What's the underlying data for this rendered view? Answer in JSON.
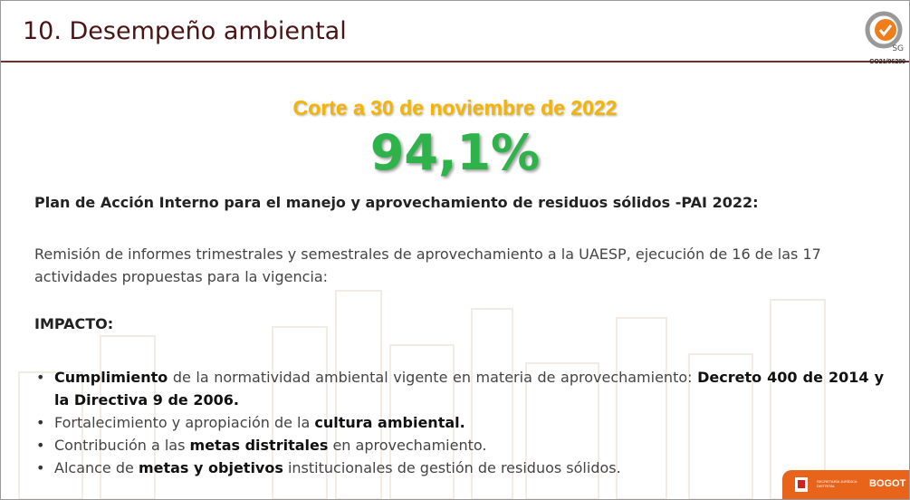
{
  "header": {
    "title": "10. Desempeño ambiental",
    "badge": {
      "mark": "SG",
      "code": "CO21/96280"
    }
  },
  "subtitle": "Corte a 30 de noviembre de 2022",
  "figure": "94,1%",
  "plan_title": "Plan de Acción Interno para el manejo y aprovechamiento de residuos sólidos -PAI 2022:",
  "paragraph": "Remisión de informes trimestrales y semestrales de aprovechamiento a la UAESP, ejecución de 16 de las 17 actividades propuestas para la vigencia:",
  "impact_title": "IMPACTO:",
  "bullets": [
    [
      {
        "text": "Cumplimiento",
        "bold": true
      },
      {
        "text": " de la normatividad ambiental vigente en materia de aprovechamiento: ",
        "bold": false
      },
      {
        "text": "Decreto 400 de 2014 y la Directiva 9 de 2006.",
        "bold": true
      }
    ],
    [
      {
        "text": "Fortalecimiento y apropiación de la ",
        "bold": false
      },
      {
        "text": "cultura ambiental.",
        "bold": true
      }
    ],
    [
      {
        "text": "Contribución a las ",
        "bold": false
      },
      {
        "text": "metas distritales",
        "bold": true
      },
      {
        "text": " en aprovechamiento.",
        "bold": false
      }
    ],
    [
      {
        "text": "Alcance de ",
        "bold": false
      },
      {
        "text": "metas y objetivos",
        "bold": true
      },
      {
        "text": " institucionales de gestión de residuos sólidos.",
        "bold": false
      }
    ]
  ],
  "footer": {
    "entity": "SECRETARÍA JURÍDICA DISTRITAL",
    "city": "BOGOT"
  }
}
